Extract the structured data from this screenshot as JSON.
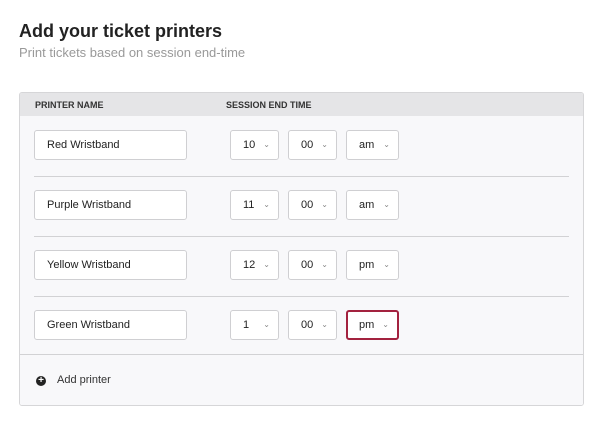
{
  "title": "Add your ticket printers",
  "subtitle": "Print tickets based on session end-time",
  "table": {
    "col_printer": "PRINTER NAME",
    "col_time": "SESSION END TIME"
  },
  "rows": [
    {
      "name": "Red Wristband",
      "hour": "10",
      "minute": "00",
      "ampm": "am"
    },
    {
      "name": "Purple Wristband",
      "hour": "11",
      "minute": "00",
      "ampm": "am"
    },
    {
      "name": "Yellow Wristband",
      "hour": "12",
      "minute": "00",
      "ampm": "pm"
    },
    {
      "name": "Green Wristband",
      "hour": "1",
      "minute": "00",
      "ampm": "pm"
    }
  ],
  "add_printer": "Add printer",
  "icons": {
    "add": "plus-circle-icon",
    "dropdown": "chevron-down-icon"
  },
  "colors": {
    "focus": "#a3223f"
  }
}
